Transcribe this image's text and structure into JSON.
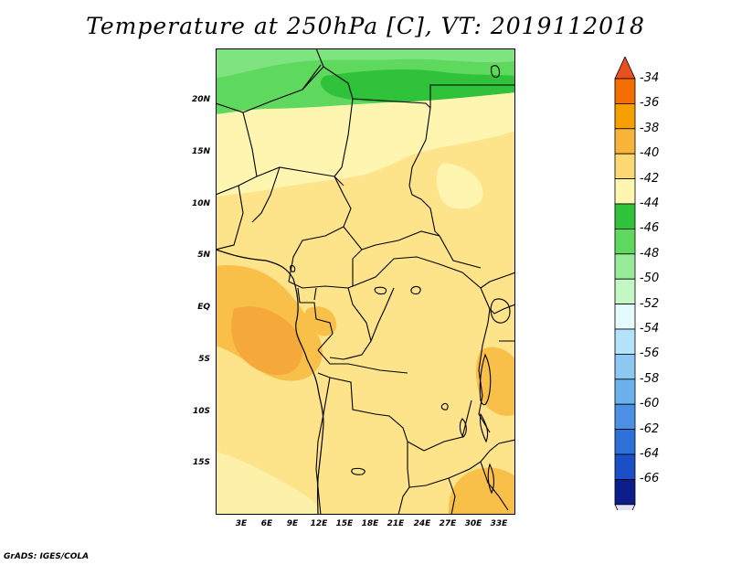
{
  "title": "Temperature at 250hPa [C], VT: 2019112018",
  "credit": "GrADS: IGES/COLA",
  "lat_ticks": [
    "20N",
    "15N",
    "10N",
    "5N",
    "EQ",
    "5S",
    "10S",
    "15S"
  ],
  "lon_ticks": [
    "3E",
    "6E",
    "9E",
    "12E",
    "15E",
    "18E",
    "21E",
    "24E",
    "27E",
    "30E",
    "33E"
  ],
  "colorbar": {
    "labels": [
      "-34",
      "-36",
      "-38",
      "-40",
      "-42",
      "-44",
      "-46",
      "-48",
      "-50",
      "-52",
      "-54",
      "-56",
      "-58",
      "-60",
      "-62",
      "-64",
      "-66"
    ],
    "colors": [
      "#e8501e",
      "#f36d00",
      "#f5a000",
      "#f8b43a",
      "#fcd873",
      "#fdf5b0",
      "#31c23c",
      "#5ed95e",
      "#98eb98",
      "#c3f7c3",
      "#e5fbfb",
      "#b4e2fa",
      "#8cc8f2",
      "#6cb1ed",
      "#4b90e5",
      "#2d70d8",
      "#1a4fc7",
      "#0b1e8c",
      "#e4e3f7"
    ]
  }
}
